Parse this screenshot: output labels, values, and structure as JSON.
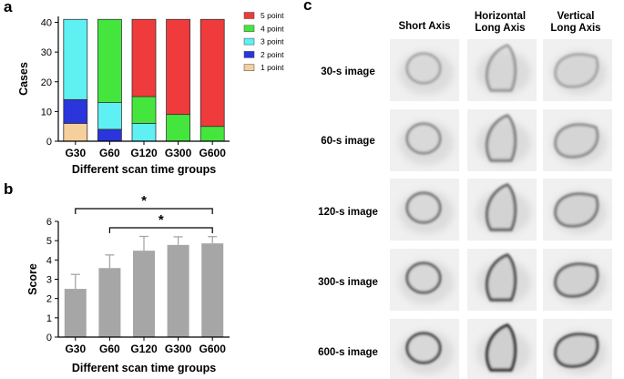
{
  "panel_labels": {
    "a": "a",
    "b": "b",
    "c": "c"
  },
  "chart_data": [
    {
      "type": "bar",
      "stacked": true,
      "categories": [
        "G30",
        "G60",
        "G120",
        "G300",
        "G600"
      ],
      "xlabel": "Different scan time groups",
      "ylabel": "Cases",
      "ylim": [
        0,
        42
      ],
      "yticks": [
        0,
        10,
        20,
        30,
        40
      ],
      "legend_position": "right",
      "series": [
        {
          "name": "1 point",
          "color": "#f5cf9c",
          "values": [
            6,
            0,
            0,
            0,
            0
          ]
        },
        {
          "name": "2 point",
          "color": "#2a35dc",
          "values": [
            8,
            4,
            0,
            0,
            0
          ]
        },
        {
          "name": "3 point",
          "color": "#5ef0f2",
          "values": [
            27,
            9,
            6,
            0,
            0
          ]
        },
        {
          "name": "4 point",
          "color": "#44e63e",
          "values": [
            0,
            28,
            9,
            9,
            5
          ]
        },
        {
          "name": "5 point",
          "color": "#ef3b3b",
          "values": [
            0,
            0,
            26,
            32,
            36
          ]
        }
      ],
      "legend_order": [
        "5 point",
        "4 point",
        "3 point",
        "2 point",
        "1 point"
      ]
    },
    {
      "type": "bar",
      "categories": [
        "G30",
        "G60",
        "G120",
        "G300",
        "G600"
      ],
      "values": [
        2.5,
        3.58,
        4.48,
        4.78,
        4.86
      ],
      "error": [
        0.75,
        0.68,
        0.74,
        0.42,
        0.35
      ],
      "bar_color": "#a6a6a6",
      "xlabel": "Different scan time groups",
      "ylabel": "Score",
      "ylim": [
        0,
        6
      ],
      "yticks": [
        0,
        1,
        2,
        3,
        4,
        5,
        6
      ],
      "significance": [
        {
          "from": "G30",
          "to": "G600",
          "label": "*"
        },
        {
          "from": "G60",
          "to": "G600",
          "label": "*"
        }
      ]
    }
  ],
  "image_grid": {
    "columns": [
      "Short Axis",
      "Horizontal\nLong Axis",
      "Vertical\nLong Axis"
    ],
    "rows": [
      "30-s image",
      "60-s image",
      "120-s image",
      "300-s image",
      "600-s image"
    ]
  }
}
